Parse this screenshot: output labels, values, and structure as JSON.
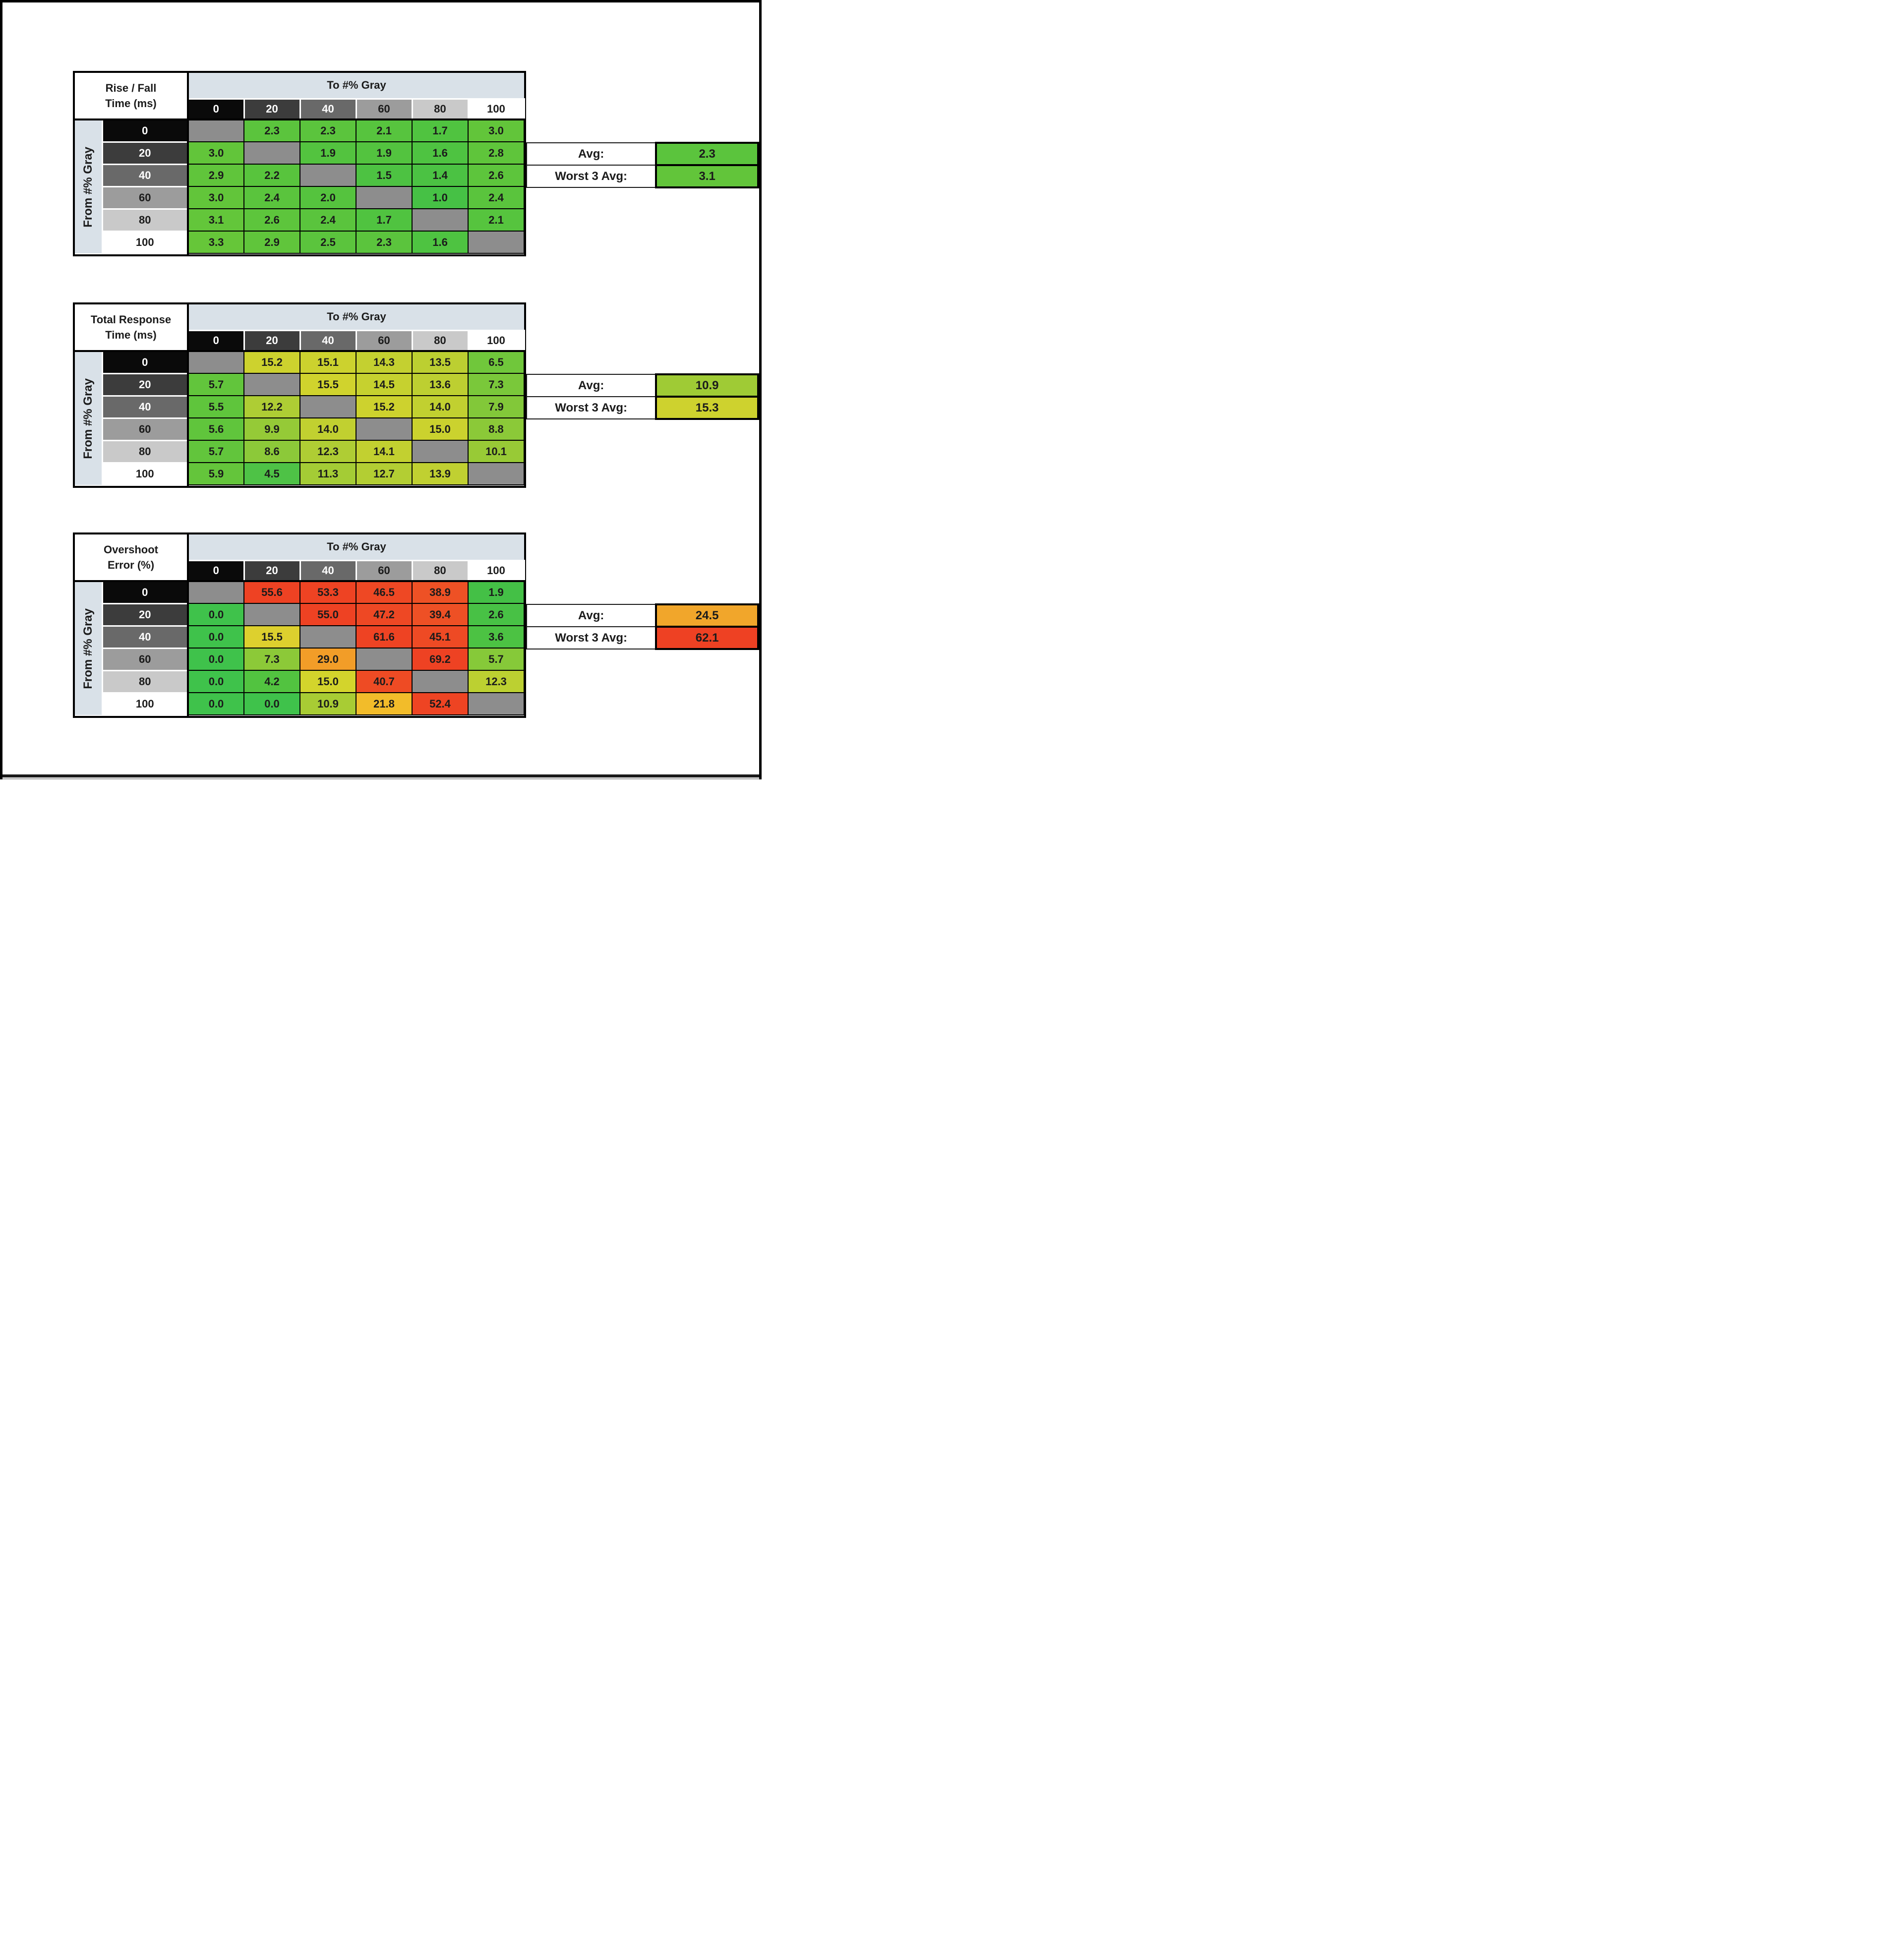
{
  "shared": {
    "to_header": "To #% Gray",
    "from_header": "From #% Gray",
    "gray_levels": [
      "0",
      "20",
      "40",
      "60",
      "80",
      "100"
    ],
    "header_fills": [
      "#0a0a0a",
      "#3c3c3c",
      "#696969",
      "#9c9c9c",
      "#c9c9c9",
      "#ffffff"
    ],
    "header_text_colors": [
      "#ffffff",
      "#ffffff",
      "#ffffff",
      "#1b1b1b",
      "#1b1b1b",
      "#1b1b1b"
    ],
    "band_bg": "#d9e1e8",
    "diag_color": "#8d8d8d",
    "avg_label": "Avg:",
    "worst3_label": "Worst 3 Avg:"
  },
  "chart_data": [
    {
      "type": "heatmap",
      "title": "Rise / Fall Time (ms)",
      "title_line1": "Rise / Fall",
      "title_line2": "Time (ms)",
      "col_axis_label": "To #% Gray",
      "row_axis_label": "From #% Gray",
      "categories": [
        "0",
        "20",
        "40",
        "60",
        "80",
        "100"
      ],
      "values": [
        [
          null,
          "2.3",
          "2.3",
          "2.1",
          "1.7",
          "3.0"
        ],
        [
          "3.0",
          null,
          "1.9",
          "1.9",
          "1.6",
          "2.8"
        ],
        [
          "2.9",
          "2.2",
          null,
          "1.5",
          "1.4",
          "2.6"
        ],
        [
          "3.0",
          "2.4",
          "2.0",
          null,
          "1.0",
          "2.4"
        ],
        [
          "3.1",
          "2.6",
          "2.4",
          "1.7",
          null,
          "2.1"
        ],
        [
          "3.3",
          "2.9",
          "2.5",
          "2.3",
          "1.6",
          null
        ]
      ],
      "cell_colors": [
        [
          null,
          "#5bc43d",
          "#5bc43d",
          "#57c43e",
          "#50c340",
          "#62c53a"
        ],
        [
          "#62c53a",
          null,
          "#53c33f",
          "#53c33f",
          "#4ec341",
          "#5fc53b"
        ],
        [
          "#60c53b",
          "#58c43d",
          null,
          "#4dc242",
          "#4bc243",
          "#5dc53c"
        ],
        [
          "#62c53a",
          "#5ac43d",
          "#55c33e",
          null,
          "#46c145",
          "#5ac43d"
        ],
        [
          "#63c63a",
          "#5dc53c",
          "#5ac43d",
          "#50c340",
          null,
          "#56c43e"
        ],
        [
          "#66c639",
          "#60c53b",
          "#5bc43d",
          "#5bc43d",
          "#4ec341",
          null
        ]
      ],
      "avg": {
        "value": "2.3",
        "color": "#5bc43d"
      },
      "worst3": {
        "value": "3.1",
        "color": "#62c53a"
      }
    },
    {
      "type": "heatmap",
      "title": "Total Response Time (ms)",
      "title_line1": "Total Response",
      "title_line2": "Time (ms)",
      "col_axis_label": "To #% Gray",
      "row_axis_label": "From #% Gray",
      "categories": [
        "0",
        "20",
        "40",
        "60",
        "80",
        "100"
      ],
      "values": [
        [
          null,
          "15.2",
          "15.1",
          "14.3",
          "13.5",
          "6.5"
        ],
        [
          "5.7",
          null,
          "15.5",
          "14.5",
          "13.6",
          "7.3"
        ],
        [
          "5.5",
          "12.2",
          null,
          "15.2",
          "14.0",
          "7.9"
        ],
        [
          "5.6",
          "9.9",
          "14.0",
          null,
          "15.0",
          "8.8"
        ],
        [
          "5.7",
          "8.6",
          "12.3",
          "14.1",
          null,
          "10.1"
        ],
        [
          "5.9",
          "4.5",
          "11.3",
          "12.7",
          "13.9",
          null
        ]
      ],
      "cell_colors": [
        [
          null,
          "#cdd22e",
          "#ccd22e",
          "#c4d030",
          "#bccf31",
          "#70c73b"
        ],
        [
          "#62c53c",
          null,
          "#d0d32d",
          "#c6d12f",
          "#bdcf31",
          "#7ac83a"
        ],
        [
          "#5fc53c",
          "#aecd34",
          null,
          "#cdd22e",
          "#c1d030",
          "#82c839"
        ],
        [
          "#60c53c",
          "#95ca37",
          "#c1d030",
          null,
          "#cbd22e",
          "#8bc938"
        ],
        [
          "#62c53c",
          "#8cc939",
          "#afcd34",
          "#c2d030",
          null,
          "#98ca36"
        ],
        [
          "#64c53b",
          "#4ec246",
          "#a4cc35",
          "#b3ce33",
          "#c0d031",
          null
        ]
      ],
      "avg": {
        "value": "10.9",
        "color": "#9fcb35"
      },
      "worst3": {
        "value": "15.3",
        "color": "#ced22e"
      }
    },
    {
      "type": "heatmap",
      "title": "Overshoot Error (%)",
      "title_line1": "Overshoot",
      "title_line2": "Error (%)",
      "col_axis_label": "To #% Gray",
      "row_axis_label": "From #% Gray",
      "categories": [
        "0",
        "20",
        "40",
        "60",
        "80",
        "100"
      ],
      "values": [
        [
          null,
          "55.6",
          "53.3",
          "46.5",
          "38.9",
          "1.9"
        ],
        [
          "0.0",
          null,
          "55.0",
          "47.2",
          "39.4",
          "2.6"
        ],
        [
          "0.0",
          "15.5",
          null,
          "61.6",
          "45.1",
          "3.6"
        ],
        [
          "0.0",
          "7.3",
          "29.0",
          null,
          "69.2",
          "5.7"
        ],
        [
          "0.0",
          "4.2",
          "15.0",
          "40.7",
          null,
          "12.3"
        ],
        [
          "0.0",
          "0.0",
          "10.9",
          "21.8",
          "52.4",
          null
        ]
      ],
      "cell_colors": [
        [
          null,
          "#ee4223",
          "#ee4323",
          "#ee4824",
          "#ee5125",
          "#44c046"
        ],
        [
          "#3fc24b",
          null,
          "#ee4223",
          "#ee4824",
          "#ee5025",
          "#48c145"
        ],
        [
          "#3fc24b",
          "#ddd02e",
          null,
          "#ee4323",
          "#ee4a24",
          "#4cc243"
        ],
        [
          "#3fc24b",
          "#8cc938",
          "#f29d28",
          null,
          "#ee4223",
          "#86c939"
        ],
        [
          "#3fc24b",
          "#52c340",
          "#d3d42c",
          "#ee4b24",
          null,
          "#bcd031"
        ],
        [
          "#3fc24b",
          "#3fc24b",
          "#a8cc34",
          "#f2bc2a",
          "#ee4423",
          null
        ]
      ],
      "avg": {
        "value": "24.5",
        "color": "#f1a62b"
      },
      "worst3": {
        "value": "62.1",
        "color": "#ee4123"
      }
    }
  ]
}
